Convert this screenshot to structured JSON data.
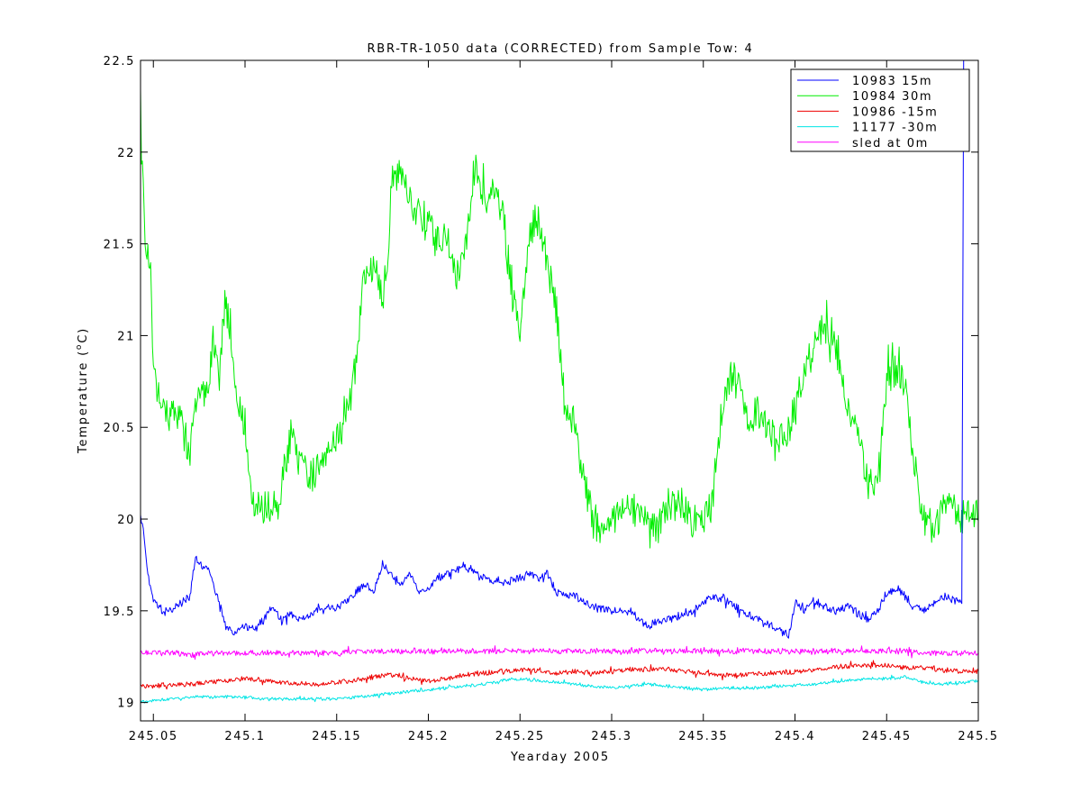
{
  "chart_data": {
    "type": "line",
    "title": "RBR-TR-1050 data (CORRECTED) from Sample Tow: 4",
    "xlabel": "Yearday 2005",
    "ylabel_prefix": "Temperature (",
    "ylabel_unit_sup": "o",
    "ylabel_suffix": "C)",
    "xlim": [
      245.043,
      245.5
    ],
    "ylim": [
      18.9,
      22.5
    ],
    "xticks": [
      245.05,
      245.1,
      245.15,
      245.2,
      245.25,
      245.3,
      245.35,
      245.4,
      245.45,
      245.5
    ],
    "xtick_labels": [
      "245.05",
      "245.1",
      "245.15",
      "245.2",
      "245.25",
      "245.3",
      "245.35",
      "245.4",
      "245.45",
      "245.5"
    ],
    "yticks": [
      19,
      19.5,
      20,
      20.5,
      21,
      21.5,
      22,
      22.5
    ],
    "ytick_labels": [
      "19",
      "19.5",
      "20",
      "20.5",
      "21",
      "21.5",
      "22",
      "22.5"
    ],
    "grid": false,
    "legend_position": "top-right",
    "series": [
      {
        "name": "10983 15m",
        "color": "#0000ff",
        "noise": 0.02,
        "x": [
          245.043,
          245.045,
          245.047,
          245.05,
          245.055,
          245.06,
          245.065,
          245.07,
          245.073,
          245.075,
          245.08,
          245.085,
          245.09,
          245.095,
          245.1,
          245.105,
          245.11,
          245.115,
          245.12,
          245.125,
          245.13,
          245.14,
          245.15,
          245.155,
          245.16,
          245.165,
          245.17,
          245.175,
          245.18,
          245.185,
          245.19,
          245.195,
          245.2,
          245.205,
          245.21,
          245.215,
          245.22,
          245.225,
          245.23,
          245.24,
          245.25,
          245.255,
          245.26,
          245.265,
          245.27,
          245.28,
          245.29,
          245.3,
          245.31,
          245.315,
          245.32,
          245.33,
          245.34,
          245.345,
          245.35,
          245.36,
          245.37,
          245.38,
          245.39,
          245.395,
          245.397,
          245.4,
          245.405,
          245.41,
          245.42,
          245.43,
          245.435,
          245.44,
          245.445,
          245.45,
          245.455,
          245.46,
          245.465,
          245.47,
          245.48,
          245.49,
          245.491,
          245.492
        ],
        "y": [
          20.02,
          19.9,
          19.7,
          19.55,
          19.5,
          19.5,
          19.55,
          19.58,
          19.8,
          19.75,
          19.72,
          19.58,
          19.4,
          19.38,
          19.42,
          19.4,
          19.45,
          19.52,
          19.45,
          19.48,
          19.45,
          19.5,
          19.52,
          19.55,
          19.6,
          19.65,
          19.6,
          19.75,
          19.7,
          19.65,
          19.7,
          19.6,
          19.62,
          19.68,
          19.7,
          19.72,
          19.75,
          19.7,
          19.68,
          19.65,
          19.68,
          19.7,
          19.68,
          19.7,
          19.6,
          19.58,
          19.52,
          19.5,
          19.5,
          19.45,
          19.42,
          19.45,
          19.48,
          19.5,
          19.55,
          19.58,
          19.5,
          19.45,
          19.4,
          19.38,
          19.36,
          19.55,
          19.5,
          19.55,
          19.5,
          19.52,
          19.48,
          19.45,
          19.5,
          19.6,
          19.62,
          19.58,
          19.52,
          19.5,
          19.58,
          19.55,
          19.54,
          22.5
        ]
      },
      {
        "name": "10984 30m",
        "color": "#00ee00",
        "noise": 0.09,
        "x": [
          245.043,
          245.044,
          245.046,
          245.048,
          245.05,
          245.052,
          245.055,
          245.06,
          245.065,
          245.07,
          245.072,
          245.075,
          245.08,
          245.083,
          245.086,
          245.089,
          245.092,
          245.095,
          245.1,
          245.105,
          245.11,
          245.115,
          245.118,
          245.12,
          245.125,
          245.13,
          245.135,
          245.14,
          245.145,
          245.15,
          245.155,
          245.16,
          245.165,
          245.17,
          245.175,
          245.178,
          245.18,
          245.185,
          245.19,
          245.195,
          245.2,
          245.205,
          245.21,
          245.215,
          245.22,
          245.225,
          245.23,
          245.235,
          245.24,
          245.245,
          245.25,
          245.255,
          245.26,
          245.265,
          245.27,
          245.275,
          245.28,
          245.285,
          245.29,
          245.295,
          245.3,
          245.305,
          245.31,
          245.315,
          245.32,
          245.325,
          245.33,
          245.335,
          245.34,
          245.345,
          245.35,
          245.355,
          245.36,
          245.365,
          245.37,
          245.375,
          245.38,
          245.385,
          245.39,
          245.395,
          245.4,
          245.405,
          245.41,
          245.415,
          245.42,
          245.425,
          245.43,
          245.435,
          245.44,
          245.445,
          245.45,
          245.455,
          245.46,
          245.465,
          245.47,
          245.475,
          245.48,
          245.485,
          245.49,
          245.495,
          245.5
        ],
        "y": [
          22.4,
          21.9,
          21.5,
          21.3,
          20.9,
          20.7,
          20.6,
          20.58,
          20.55,
          20.35,
          20.55,
          20.65,
          20.75,
          21.0,
          20.8,
          21.2,
          21.0,
          20.65,
          20.5,
          20.05,
          20.05,
          20.1,
          20.0,
          20.2,
          20.45,
          20.3,
          20.2,
          20.3,
          20.4,
          20.45,
          20.55,
          20.8,
          21.3,
          21.4,
          21.2,
          21.45,
          21.85,
          21.9,
          21.75,
          21.65,
          21.6,
          21.5,
          21.55,
          21.3,
          21.45,
          21.9,
          21.75,
          21.8,
          21.7,
          21.3,
          21.0,
          21.55,
          21.65,
          21.4,
          21.1,
          20.6,
          20.5,
          20.2,
          20.0,
          19.95,
          20.0,
          20.05,
          20.1,
          20.0,
          20.0,
          19.95,
          20.05,
          20.1,
          20.05,
          20.0,
          20.0,
          20.1,
          20.6,
          20.8,
          20.7,
          20.5,
          20.6,
          20.5,
          20.4,
          20.45,
          20.6,
          20.8,
          20.9,
          21.05,
          21.0,
          20.8,
          20.55,
          20.45,
          20.2,
          20.2,
          20.75,
          20.8,
          20.75,
          20.3,
          20.0,
          19.95,
          20.05,
          20.15,
          19.98,
          20.02,
          20.0
        ]
      },
      {
        "name": "10986 -15m",
        "color": "#ee0000",
        "noise": 0.012,
        "x": [
          245.043,
          245.05,
          245.06,
          245.07,
          245.08,
          245.09,
          245.1,
          245.11,
          245.12,
          245.13,
          245.14,
          245.15,
          245.16,
          245.17,
          245.18,
          245.19,
          245.2,
          245.21,
          245.22,
          245.23,
          245.24,
          245.25,
          245.26,
          245.27,
          245.28,
          245.29,
          245.3,
          245.31,
          245.32,
          245.33,
          245.34,
          245.35,
          245.36,
          245.37,
          245.38,
          245.39,
          245.4,
          245.41,
          245.42,
          245.43,
          245.44,
          245.45,
          245.46,
          245.47,
          245.48,
          245.49,
          245.5
        ],
        "y": [
          19.09,
          19.09,
          19.1,
          19.1,
          19.11,
          19.12,
          19.13,
          19.12,
          19.11,
          19.1,
          19.1,
          19.11,
          19.12,
          19.14,
          19.15,
          19.13,
          19.12,
          19.13,
          19.15,
          19.16,
          19.17,
          19.18,
          19.17,
          19.16,
          19.17,
          19.16,
          19.17,
          19.18,
          19.18,
          19.18,
          19.17,
          19.16,
          19.15,
          19.15,
          19.16,
          19.16,
          19.17,
          19.18,
          19.19,
          19.2,
          19.2,
          19.2,
          19.19,
          19.19,
          19.18,
          19.17,
          19.17
        ]
      },
      {
        "name": "11177 -30m",
        "color": "#00e5e5",
        "noise": 0.008,
        "x": [
          245.043,
          245.05,
          245.06,
          245.07,
          245.08,
          245.09,
          245.1,
          245.11,
          245.12,
          245.13,
          245.14,
          245.15,
          245.16,
          245.17,
          245.18,
          245.19,
          245.2,
          245.21,
          245.22,
          245.23,
          245.24,
          245.25,
          245.26,
          245.27,
          245.28,
          245.29,
          245.3,
          245.31,
          245.32,
          245.33,
          245.34,
          245.35,
          245.36,
          245.37,
          245.38,
          245.39,
          245.4,
          245.41,
          245.42,
          245.43,
          245.44,
          245.45,
          245.46,
          245.47,
          245.48,
          245.49,
          245.5
        ],
        "y": [
          19.0,
          19.01,
          19.02,
          19.03,
          19.03,
          19.03,
          19.03,
          19.02,
          19.02,
          19.02,
          19.02,
          19.02,
          19.03,
          19.04,
          19.05,
          19.06,
          19.07,
          19.08,
          19.09,
          19.1,
          19.12,
          19.13,
          19.12,
          19.11,
          19.1,
          19.09,
          19.08,
          19.09,
          19.1,
          19.09,
          19.08,
          19.07,
          19.08,
          19.08,
          19.08,
          19.09,
          19.09,
          19.1,
          19.11,
          19.12,
          19.13,
          19.13,
          19.14,
          19.11,
          19.1,
          19.11,
          19.12
        ]
      },
      {
        "name": "sled at 0m",
        "color": "#ff00ff",
        "noise": 0.014,
        "x": [
          245.043,
          245.05,
          245.06,
          245.07,
          245.08,
          245.09,
          245.1,
          245.11,
          245.12,
          245.13,
          245.14,
          245.15,
          245.16,
          245.17,
          245.18,
          245.19,
          245.2,
          245.21,
          245.22,
          245.23,
          245.24,
          245.25,
          245.26,
          245.27,
          245.28,
          245.29,
          245.3,
          245.31,
          245.32,
          245.33,
          245.34,
          245.35,
          245.36,
          245.37,
          245.38,
          245.39,
          245.4,
          245.41,
          245.42,
          245.43,
          245.44,
          245.45,
          245.46,
          245.47,
          245.48,
          245.49,
          245.5
        ],
        "y": [
          19.28,
          19.27,
          19.27,
          19.26,
          19.27,
          19.27,
          19.27,
          19.27,
          19.27,
          19.27,
          19.27,
          19.27,
          19.28,
          19.28,
          19.28,
          19.28,
          19.28,
          19.28,
          19.28,
          19.28,
          19.28,
          19.28,
          19.28,
          19.28,
          19.28,
          19.28,
          19.28,
          19.28,
          19.28,
          19.28,
          19.28,
          19.28,
          19.28,
          19.28,
          19.28,
          19.28,
          19.28,
          19.28,
          19.28,
          19.28,
          19.28,
          19.28,
          19.28,
          19.27,
          19.27,
          19.27,
          19.27
        ]
      }
    ]
  }
}
